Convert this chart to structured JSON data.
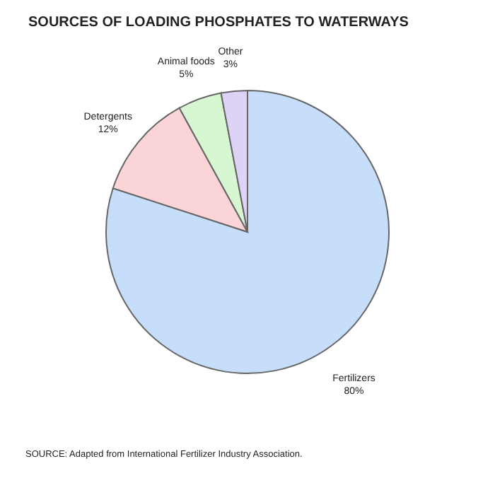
{
  "chart_data": {
    "type": "pie",
    "title": "SOURCES OF LOADING PHOSPHATES TO WATERWAYS",
    "categories": [
      "Fertilizers",
      "Detergents",
      "Animal foods",
      "Other"
    ],
    "values": [
      80,
      12,
      5,
      3
    ],
    "colors": [
      "#c6defa",
      "#fad4d6",
      "#d6f7d2",
      "#dcd3f7"
    ],
    "value_labels": [
      "80%",
      "12%",
      "5%",
      "3%"
    ],
    "annotations": [
      "SOURCE: Adapted from International Fertilizer Industry Association."
    ]
  }
}
